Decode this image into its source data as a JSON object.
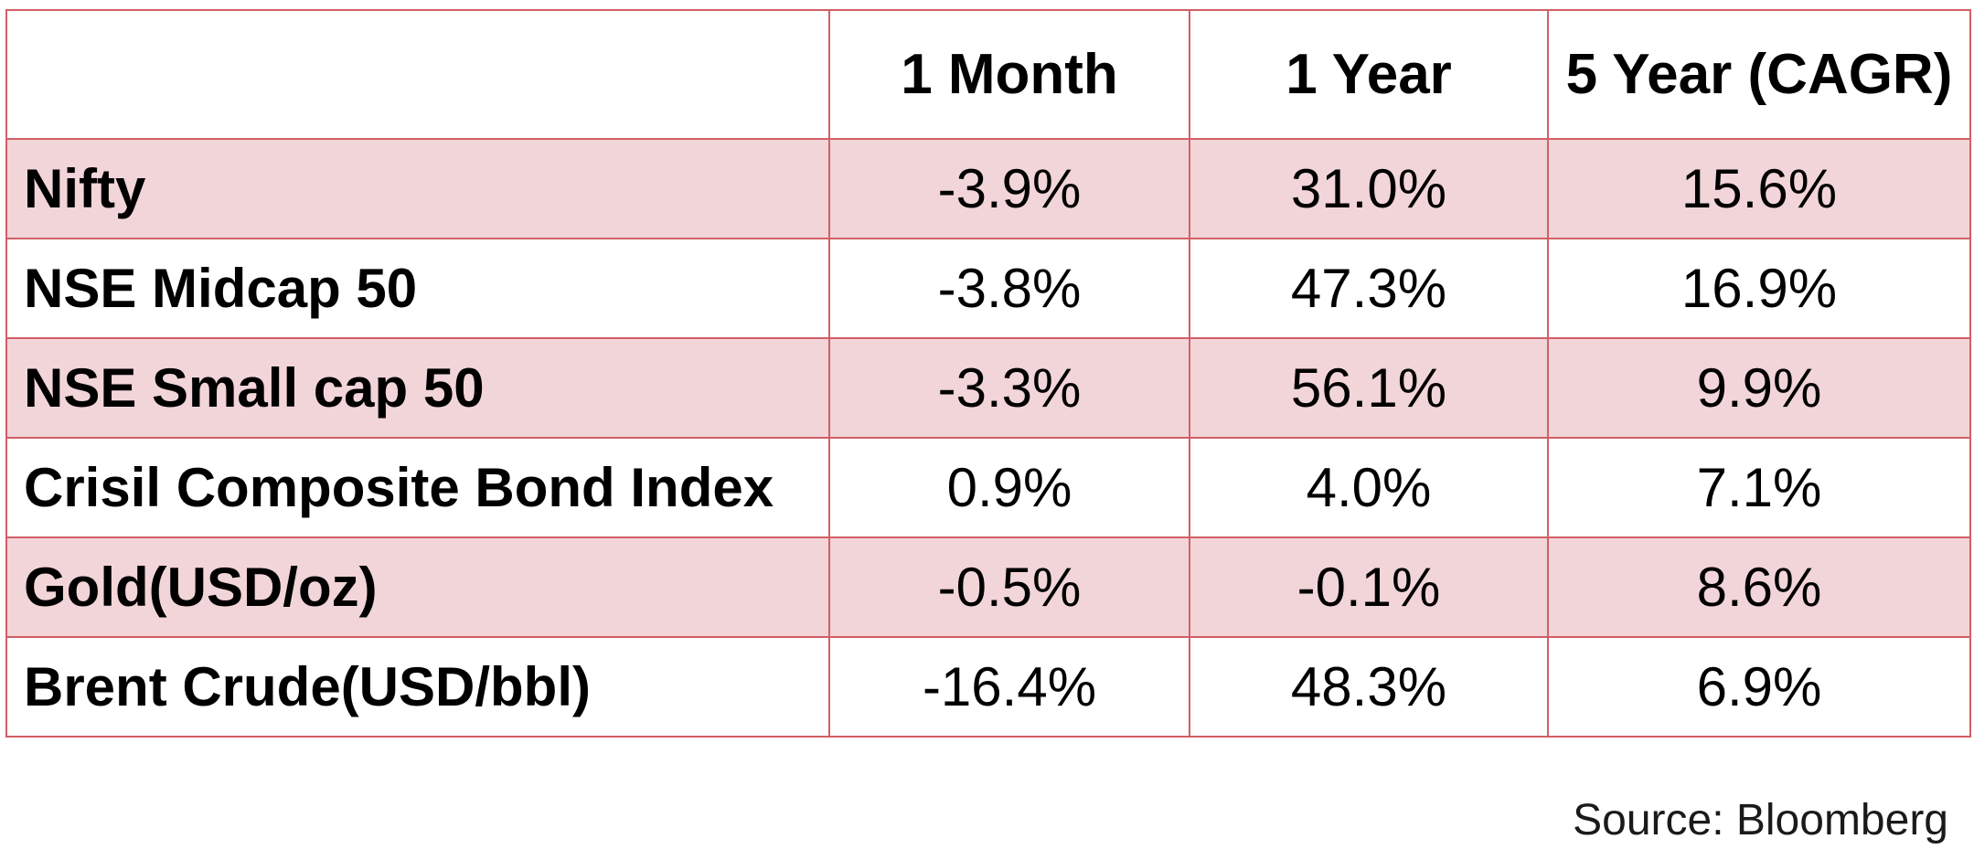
{
  "table": {
    "columns": [
      "",
      "1 Month",
      "1 Year",
      "5 Year (CAGR)"
    ],
    "rows": [
      {
        "name": "Nifty",
        "m1": "-3.9%",
        "y1": "31.0%",
        "y5": "15.6%"
      },
      {
        "name": "NSE Midcap 50",
        "m1": "-3.8%",
        "y1": "47.3%",
        "y5": "16.9%"
      },
      {
        "name": "NSE Small cap 50",
        "m1": "-3.3%",
        "y1": "56.1%",
        "y5": "9.9%"
      },
      {
        "name": "Crisil Composite Bond Index",
        "m1": "0.9%",
        "y1": "4.0%",
        "y5": "7.1%"
      },
      {
        "name": "Gold(USD/oz)",
        "m1": "-0.5%",
        "y1": "-0.1%",
        "y5": "8.6%"
      },
      {
        "name": "Brent Crude(USD/bbl)",
        "m1": "-16.4%",
        "y1": "48.3%",
        "y5": "6.9%"
      }
    ]
  },
  "source": "Source: Bloomberg",
  "colors": {
    "border": "#d15f66",
    "shaded_row": "#f2d5d8"
  }
}
